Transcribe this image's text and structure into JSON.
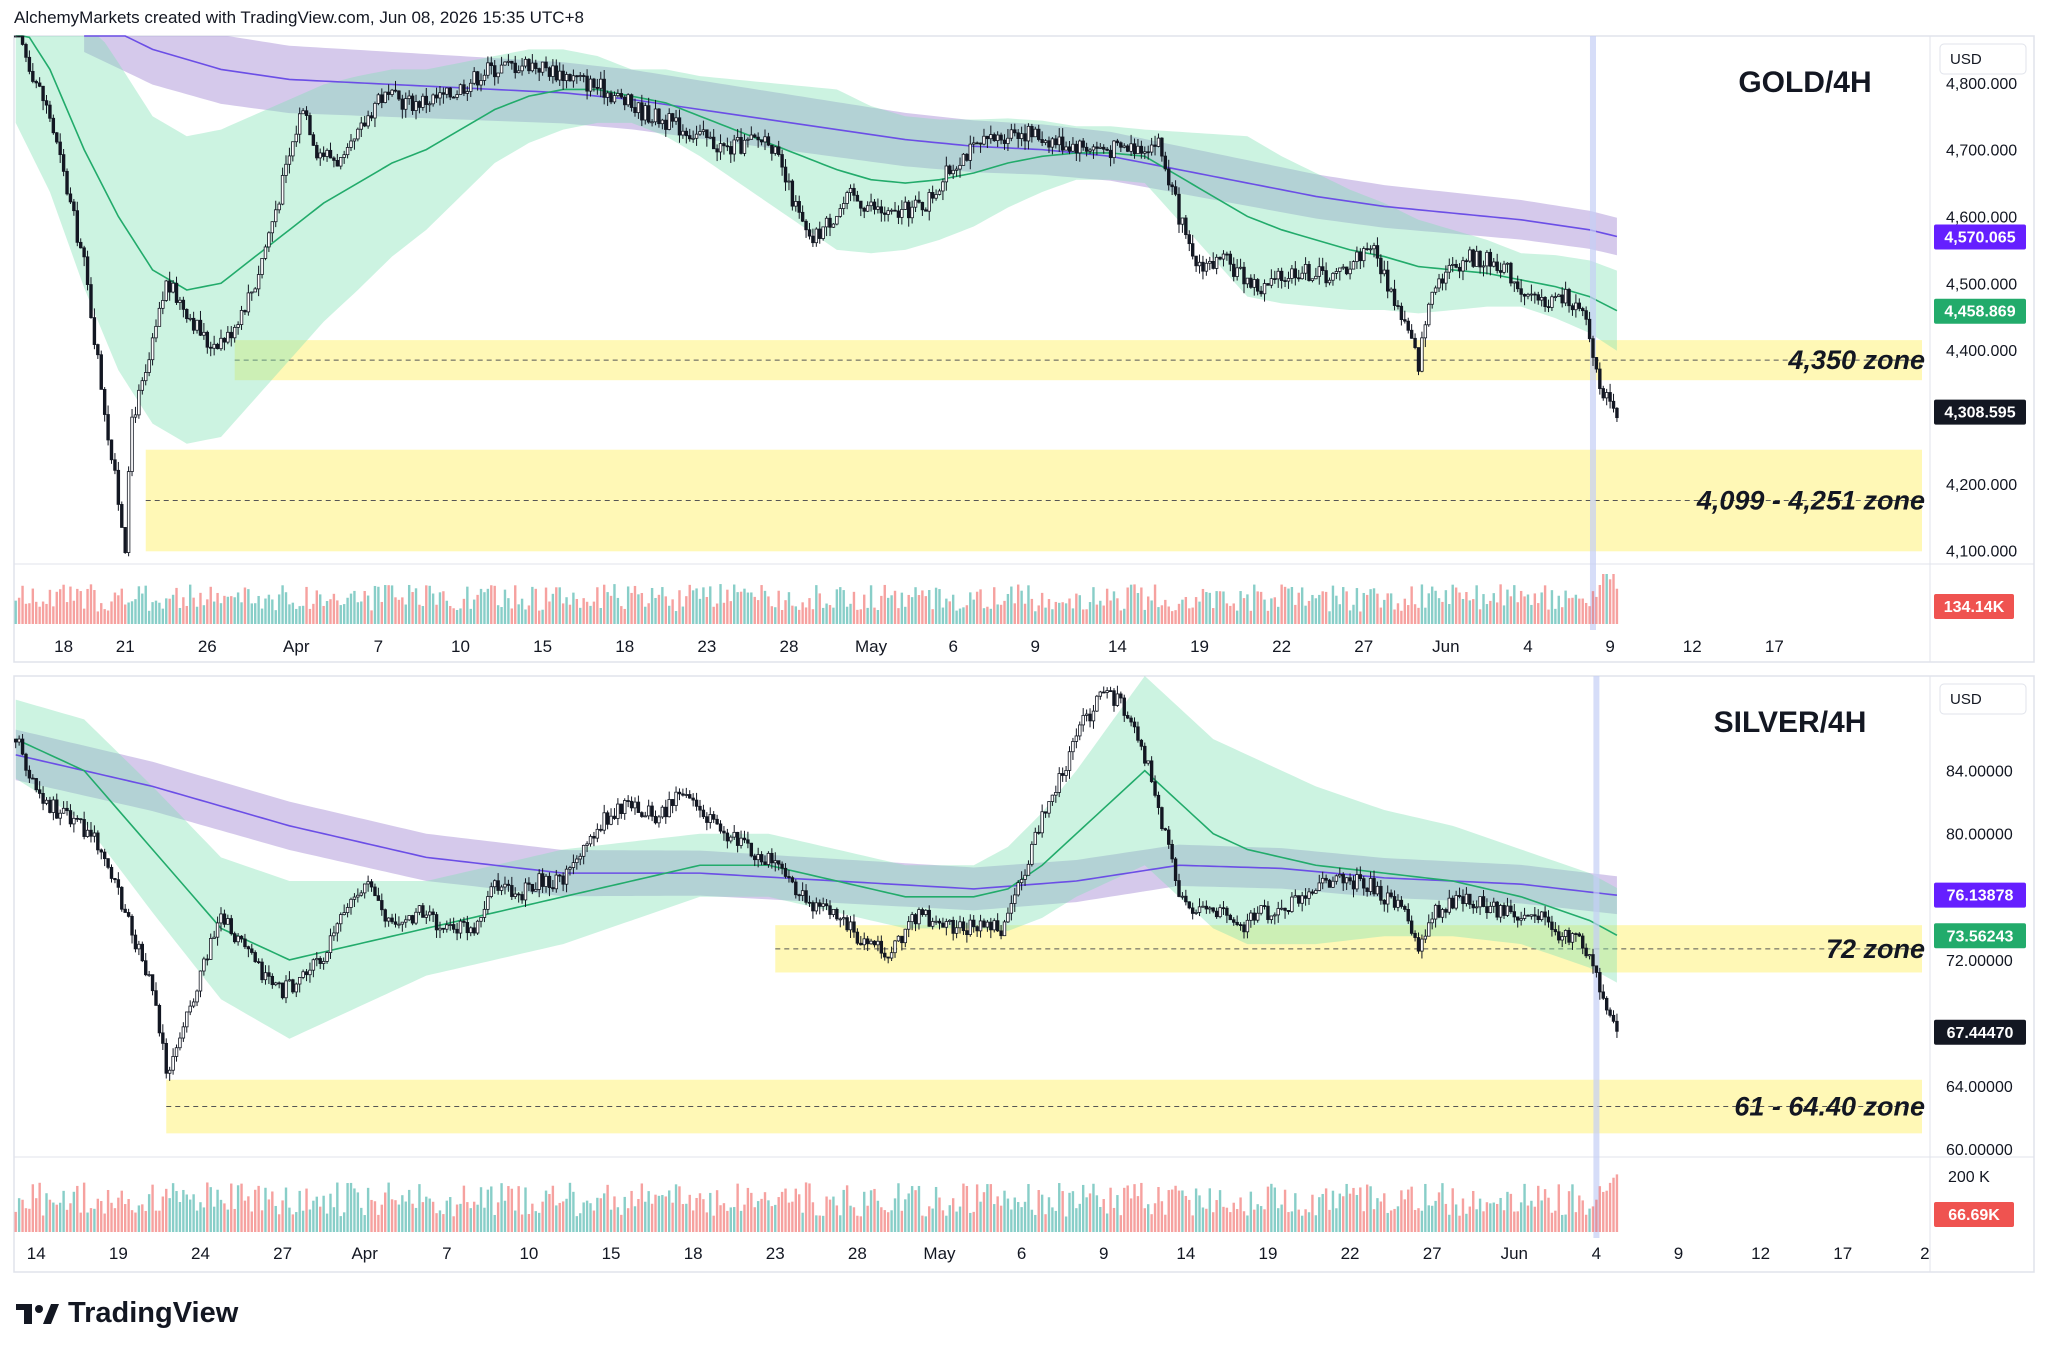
{
  "header": {
    "caption": "AlchemyMarkets created with TradingView.com, Jun 08, 2026 15:35 UTC+8"
  },
  "footer": {
    "brand": "TradingView"
  },
  "colors": {
    "up": "#131722",
    "down": "#131722",
    "zone": "#fff59d",
    "ema_short": "#22ab6b",
    "ema_long": "#6b4ee6",
    "band_short": "#80e0b5",
    "band_long": "#b39ddb",
    "vol_up": "#26a69a",
    "vol_down": "#ef5350",
    "highlight": "#c5cff5"
  },
  "chart_data": [
    {
      "id": "gold",
      "type": "candlestick",
      "title": "GOLD/4H",
      "currency": "USD",
      "ylim": [
        4080,
        4870
      ],
      "y_ticks": [
        "4,800.000",
        "4,700.000",
        "4,600.000",
        "4,500.000",
        "4,400.000",
        "4,200.000",
        "4,100.000"
      ],
      "y_tick_values": [
        4800,
        4700,
        4600,
        4500,
        4400,
        4200,
        4100
      ],
      "date_ticks": [
        "18",
        "21",
        "26",
        "Apr",
        "7",
        "10",
        "15",
        "18",
        "23",
        "28",
        "May",
        "6",
        "9",
        "14",
        "19",
        "22",
        "27",
        "Jun",
        "4",
        "9",
        "12",
        "17"
      ],
      "date_tick_index": [
        14,
        32,
        56,
        82,
        106,
        130,
        154,
        178,
        202,
        226,
        250,
        274,
        298,
        322,
        346,
        370,
        394,
        418,
        442,
        466,
        490,
        514
      ],
      "total_slots": 560,
      "path_anchors": [
        [
          0,
          4880
        ],
        [
          10,
          4750
        ],
        [
          20,
          4530
        ],
        [
          28,
          4240
        ],
        [
          32,
          4110
        ],
        [
          34,
          4300
        ],
        [
          38,
          4360
        ],
        [
          44,
          4500
        ],
        [
          50,
          4460
        ],
        [
          56,
          4410
        ],
        [
          62,
          4420
        ],
        [
          70,
          4500
        ],
        [
          78,
          4650
        ],
        [
          84,
          4770
        ],
        [
          88,
          4700
        ],
        [
          96,
          4680
        ],
        [
          106,
          4780
        ],
        [
          116,
          4770
        ],
        [
          126,
          4780
        ],
        [
          138,
          4820
        ],
        [
          150,
          4830
        ],
        [
          162,
          4810
        ],
        [
          172,
          4790
        ],
        [
          182,
          4760
        ],
        [
          196,
          4730
        ],
        [
          208,
          4700
        ],
        [
          220,
          4720
        ],
        [
          232,
          4560
        ],
        [
          244,
          4630
        ],
        [
          256,
          4600
        ],
        [
          266,
          4620
        ],
        [
          276,
          4690
        ],
        [
          292,
          4730
        ],
        [
          306,
          4710
        ],
        [
          320,
          4700
        ],
        [
          334,
          4710
        ],
        [
          344,
          4530
        ],
        [
          354,
          4530
        ],
        [
          364,
          4490
        ],
        [
          374,
          4520
        ],
        [
          386,
          4510
        ],
        [
          396,
          4560
        ],
        [
          406,
          4440
        ],
        [
          410,
          4380
        ],
        [
          414,
          4500
        ],
        [
          424,
          4540
        ],
        [
          434,
          4530
        ],
        [
          444,
          4470
        ],
        [
          454,
          4480
        ],
        [
          459,
          4440
        ],
        [
          462,
          4370
        ],
        [
          466,
          4310
        ],
        [
          468,
          4300
        ]
      ],
      "ema_short_anchors": [
        [
          0,
          4900
        ],
        [
          10,
          4820
        ],
        [
          20,
          4700
        ],
        [
          30,
          4600
        ],
        [
          40,
          4520
        ],
        [
          50,
          4490
        ],
        [
          60,
          4500
        ],
        [
          70,
          4540
        ],
        [
          80,
          4580
        ],
        [
          90,
          4620
        ],
        [
          100,
          4650
        ],
        [
          110,
          4680
        ],
        [
          120,
          4700
        ],
        [
          130,
          4730
        ],
        [
          140,
          4760
        ],
        [
          150,
          4780
        ],
        [
          160,
          4790
        ],
        [
          170,
          4790
        ],
        [
          180,
          4780
        ],
        [
          190,
          4770
        ],
        [
          200,
          4750
        ],
        [
          210,
          4730
        ],
        [
          220,
          4710
        ],
        [
          230,
          4690
        ],
        [
          240,
          4670
        ],
        [
          250,
          4655
        ],
        [
          260,
          4650
        ],
        [
          270,
          4655
        ],
        [
          280,
          4665
        ],
        [
          290,
          4680
        ],
        [
          300,
          4690
        ],
        [
          310,
          4695
        ],
        [
          320,
          4695
        ],
        [
          330,
          4690
        ],
        [
          340,
          4660
        ],
        [
          350,
          4630
        ],
        [
          360,
          4600
        ],
        [
          370,
          4580
        ],
        [
          380,
          4565
        ],
        [
          390,
          4550
        ],
        [
          400,
          4540
        ],
        [
          410,
          4525
        ],
        [
          420,
          4520
        ],
        [
          430,
          4515
        ],
        [
          440,
          4505
        ],
        [
          450,
          4495
        ],
        [
          460,
          4480
        ],
        [
          468,
          4459
        ]
      ],
      "ema_long_anchors": [
        [
          20,
          4900
        ],
        [
          40,
          4850
        ],
        [
          60,
          4820
        ],
        [
          80,
          4805
        ],
        [
          100,
          4800
        ],
        [
          120,
          4795
        ],
        [
          140,
          4790
        ],
        [
          160,
          4785
        ],
        [
          180,
          4775
        ],
        [
          200,
          4760
        ],
        [
          220,
          4745
        ],
        [
          240,
          4730
        ],
        [
          260,
          4715
        ],
        [
          280,
          4705
        ],
        [
          300,
          4700
        ],
        [
          320,
          4690
        ],
        [
          340,
          4670
        ],
        [
          360,
          4650
        ],
        [
          380,
          4630
        ],
        [
          400,
          4615
        ],
        [
          420,
          4605
        ],
        [
          440,
          4595
        ],
        [
          460,
          4580
        ],
        [
          468,
          4570
        ]
      ],
      "band_short_width": [
        [
          0,
          160
        ],
        [
          30,
          230
        ],
        [
          60,
          230
        ],
        [
          100,
          160
        ],
        [
          140,
          80
        ],
        [
          180,
          40
        ],
        [
          200,
          60
        ],
        [
          240,
          120
        ],
        [
          280,
          80
        ],
        [
          310,
          40
        ],
        [
          330,
          40
        ],
        [
          360,
          120
        ],
        [
          400,
          80
        ],
        [
          440,
          40
        ],
        [
          468,
          60
        ]
      ],
      "band_long_width": [
        [
          0,
          55
        ],
        [
          468,
          28
        ]
      ],
      "zones": [
        {
          "label": "4,350 zone",
          "from": 4355,
          "to": 4415,
          "line": 4385,
          "start": 64
        },
        {
          "label": "4,099 - 4,251 zone",
          "from": 4099,
          "to": 4251,
          "line": 4175,
          "start": 38
        }
      ],
      "price_badges": [
        {
          "value": "4,570.065",
          "price": 4570,
          "color": "#651fff"
        },
        {
          "value": "4,458.869",
          "price": 4459,
          "color": "#22ab6b"
        },
        {
          "value": "4,308.595",
          "price": 4308,
          "color": "#131722"
        }
      ],
      "volume_badge": {
        "value": "134.14K",
        "color": "#ef5350"
      },
      "highlight_index": 461
    },
    {
      "id": "silver",
      "type": "candlestick",
      "title": "SILVER/4H",
      "currency": "USD",
      "ylim": [
        59.5,
        90
      ],
      "y_ticks": [
        "84.00000",
        "80.00000",
        "72.00000",
        "64.00000",
        "60.00000"
      ],
      "y_tick_values": [
        84,
        80,
        72,
        64,
        60
      ],
      "date_ticks": [
        "14",
        "19",
        "24",
        "27",
        "Apr",
        "7",
        "10",
        "15",
        "18",
        "23",
        "28",
        "May",
        "6",
        "9",
        "14",
        "19",
        "22",
        "27",
        "Jun",
        "4",
        "9",
        "12",
        "17",
        "2"
      ],
      "date_tick_index": [
        6,
        30,
        54,
        78,
        102,
        126,
        150,
        174,
        198,
        222,
        246,
        270,
        294,
        318,
        342,
        366,
        390,
        414,
        438,
        462,
        486,
        510,
        534,
        558
      ],
      "total_slots": 560,
      "path_anchors": [
        [
          0,
          86
        ],
        [
          8,
          82
        ],
        [
          16,
          81
        ],
        [
          24,
          79.5
        ],
        [
          32,
          75
        ],
        [
          40,
          70
        ],
        [
          44,
          65
        ],
        [
          48,
          67
        ],
        [
          54,
          71
        ],
        [
          60,
          75
        ],
        [
          66,
          73
        ],
        [
          72,
          71
        ],
        [
          78,
          70
        ],
        [
          84,
          71
        ],
        [
          90,
          72
        ],
        [
          96,
          75
        ],
        [
          102,
          77
        ],
        [
          110,
          74
        ],
        [
          118,
          75
        ],
        [
          126,
          74
        ],
        [
          134,
          74
        ],
        [
          140,
          77
        ],
        [
          146,
          76
        ],
        [
          152,
          77
        ],
        [
          160,
          77
        ],
        [
          166,
          79
        ],
        [
          172,
          81
        ],
        [
          180,
          82
        ],
        [
          188,
          81
        ],
        [
          196,
          83
        ],
        [
          202,
          81
        ],
        [
          208,
          80
        ],
        [
          214,
          79
        ],
        [
          222,
          78
        ],
        [
          230,
          76
        ],
        [
          238,
          75
        ],
        [
          246,
          73.5
        ],
        [
          256,
          72.5
        ],
        [
          264,
          75
        ],
        [
          272,
          74
        ],
        [
          280,
          74
        ],
        [
          288,
          74
        ],
        [
          294,
          77
        ],
        [
          300,
          81
        ],
        [
          306,
          84
        ],
        [
          312,
          87
        ],
        [
          318,
          89
        ],
        [
          324,
          88
        ],
        [
          330,
          85
        ],
        [
          336,
          80
        ],
        [
          340,
          76
        ],
        [
          346,
          75
        ],
        [
          352,
          75
        ],
        [
          358,
          74
        ],
        [
          364,
          75
        ],
        [
          370,
          75
        ],
        [
          376,
          76
        ],
        [
          382,
          77
        ],
        [
          388,
          77
        ],
        [
          394,
          77
        ],
        [
          400,
          76
        ],
        [
          406,
          75
        ],
        [
          410,
          72.5
        ],
        [
          414,
          75
        ],
        [
          424,
          76
        ],
        [
          434,
          75
        ],
        [
          444,
          75
        ],
        [
          452,
          73.5
        ],
        [
          458,
          73
        ],
        [
          462,
          71.5
        ],
        [
          465,
          68.5
        ],
        [
          468,
          67.4
        ]
      ],
      "ema_short_anchors": [
        [
          0,
          86
        ],
        [
          20,
          84
        ],
        [
          40,
          79
        ],
        [
          60,
          74
        ],
        [
          80,
          72
        ],
        [
          100,
          73
        ],
        [
          120,
          74
        ],
        [
          140,
          75
        ],
        [
          160,
          76
        ],
        [
          180,
          77
        ],
        [
          200,
          78
        ],
        [
          220,
          78
        ],
        [
          240,
          77
        ],
        [
          260,
          76
        ],
        [
          280,
          76
        ],
        [
          290,
          76.5
        ],
        [
          300,
          78
        ],
        [
          310,
          80
        ],
        [
          320,
          82
        ],
        [
          330,
          84
        ],
        [
          340,
          82
        ],
        [
          350,
          80
        ],
        [
          360,
          79
        ],
        [
          380,
          78
        ],
        [
          400,
          77.5
        ],
        [
          420,
          77
        ],
        [
          440,
          76
        ],
        [
          460,
          74.5
        ],
        [
          468,
          73.56
        ]
      ],
      "ema_long_anchors": [
        [
          0,
          85
        ],
        [
          40,
          83
        ],
        [
          80,
          80.5
        ],
        [
          120,
          78.5
        ],
        [
          160,
          77.5
        ],
        [
          200,
          77.5
        ],
        [
          240,
          77
        ],
        [
          280,
          76.5
        ],
        [
          310,
          77
        ],
        [
          340,
          78
        ],
        [
          370,
          77.8
        ],
        [
          400,
          77.2
        ],
        [
          440,
          76.8
        ],
        [
          468,
          76.1
        ]
      ],
      "band_short_width": [
        [
          0,
          2.5
        ],
        [
          40,
          4
        ],
        [
          80,
          5
        ],
        [
          120,
          3
        ],
        [
          160,
          3
        ],
        [
          200,
          2
        ],
        [
          240,
          2
        ],
        [
          280,
          2
        ],
        [
          310,
          4
        ],
        [
          330,
          6
        ],
        [
          360,
          6
        ],
        [
          400,
          4
        ],
        [
          440,
          3
        ],
        [
          468,
          3
        ]
      ],
      "band_long_width": [
        [
          0,
          1.6
        ],
        [
          468,
          1.2
        ]
      ],
      "zones": [
        {
          "label": "72 zone",
          "from": 71.2,
          "to": 74.2,
          "line": 72.7,
          "start": 222
        },
        {
          "label": "61 - 64.40 zone",
          "from": 61,
          "to": 64.4,
          "line": 62.7,
          "start": 44
        }
      ],
      "price_badges": [
        {
          "value": "76.13878",
          "price": 76.14,
          "color": "#651fff"
        },
        {
          "value": "73.56243",
          "price": 73.56,
          "color": "#22ab6b"
        },
        {
          "value": "67.44470",
          "price": 67.44,
          "color": "#131722"
        }
      ],
      "volume_badge": {
        "value": "66.69K",
        "color": "#ef5350"
      },
      "volume_scale_label": "200 K",
      "highlight_index": 462
    }
  ]
}
